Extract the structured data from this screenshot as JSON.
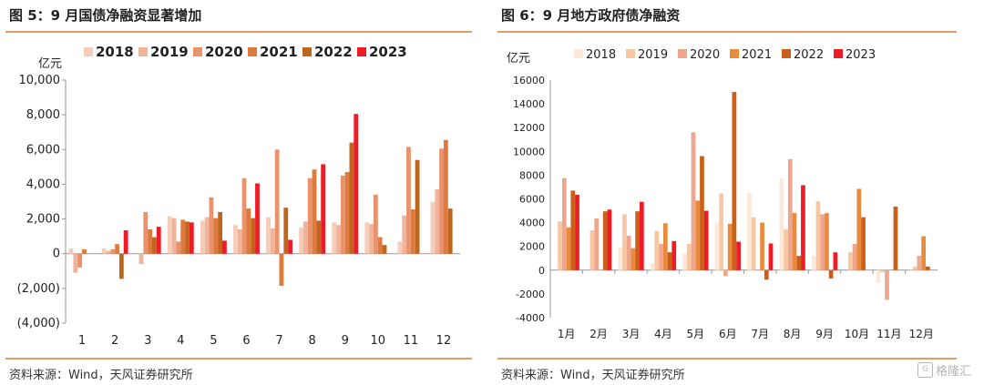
{
  "charts": [
    {
      "title": "图 5：9 月国债净融资显著增加",
      "source": "资料来源：Wind，天风证券研究所",
      "chart_data": {
        "type": "bar",
        "ylabel": "亿元",
        "categories": [
          "1",
          "2",
          "3",
          "4",
          "5",
          "6",
          "7",
          "8",
          "9",
          "10",
          "11",
          "12"
        ],
        "ylim": [
          -4000,
          10000
        ],
        "yticks": [
          -4000,
          -2000,
          0,
          2000,
          4000,
          6000,
          8000,
          10000
        ],
        "ytick_labels": [
          "(4,000)",
          "(2,000)",
          "0",
          "2,000",
          "4,000",
          "6,000",
          "8,000",
          "10,000"
        ],
        "legend_position": "top",
        "grid": false,
        "series": [
          {
            "name": "2018",
            "color": "#f6cdb8",
            "values": [
              300,
              300,
              0,
              2150,
              1900,
              1650,
              2100,
              1500,
              1800,
              1800,
              700,
              3000
            ]
          },
          {
            "name": "2019",
            "color": "#f0b49a",
            "values": [
              -1100,
              150,
              -600,
              2050,
              2100,
              1400,
              1450,
              1850,
              1650,
              1700,
              2200,
              3700
            ]
          },
          {
            "name": "2020",
            "color": "#e9926b",
            "values": [
              -800,
              250,
              2400,
              700,
              3250,
              4350,
              6000,
              4350,
              4500,
              3400,
              6150,
              6050
            ]
          },
          {
            "name": "2021",
            "color": "#dd7a3c",
            "values": [
              250,
              550,
              1400,
              1950,
              2050,
              2600,
              -1850,
              4850,
              4700,
              950,
              2550,
              6550
            ]
          },
          {
            "name": "2022",
            "color": "#bf661e",
            "values": [
              0,
              -1450,
              950,
              1850,
              2400,
              2050,
              2650,
              1900,
              6400,
              500,
              5400,
              2600
            ]
          },
          {
            "name": "2023",
            "color": "#ee1c25",
            "values": [
              0,
              1350,
              1550,
              1800,
              750,
              4050,
              800,
              5150,
              8050,
              null,
              null,
              null
            ]
          }
        ]
      }
    },
    {
      "title": "图 6：9 月地方政府债净融资",
      "source": "资料来源：Wind，天风证券研究所",
      "chart_data": {
        "type": "bar",
        "ylabel": "亿元",
        "categories": [
          "1月",
          "2月",
          "3月",
          "4月",
          "5月",
          "6月",
          "7月",
          "8月",
          "9月",
          "10月",
          "11月",
          "12月"
        ],
        "ylim": [
          -4000,
          16000
        ],
        "yticks": [
          -4000,
          -2000,
          0,
          2000,
          4000,
          6000,
          8000,
          10000,
          12000,
          14000,
          16000
        ],
        "ytick_labels": [
          "-4000",
          "-2000",
          "0",
          "2000",
          "4000",
          "6000",
          "8000",
          "10000",
          "12000",
          "14000",
          "16000"
        ],
        "legend_position": "top",
        "grid": false,
        "series": [
          {
            "name": "2018",
            "color": "#fde9d9",
            "values": [
              0,
              0,
              1900,
              550,
              1400,
              4000,
              6500,
              7700,
              1200,
              0,
              -1100,
              -100
            ]
          },
          {
            "name": "2019",
            "color": "#f7c7a4",
            "values": [
              4100,
              3350,
              4700,
              3300,
              2200,
              6450,
              4450,
              3450,
              5800,
              1500,
              -200,
              300
            ]
          },
          {
            "name": "2020",
            "color": "#eea68c",
            "values": [
              7750,
              4350,
              2900,
              2200,
              11600,
              -500,
              0,
              9350,
              4700,
              2200,
              -2500,
              1200
            ]
          },
          {
            "name": "2021",
            "color": "#ea8a3c",
            "values": [
              3600,
              0,
              1850,
              3950,
              5850,
              3900,
              4000,
              4800,
              4800,
              6850,
              0,
              2850
            ]
          },
          {
            "name": "2022",
            "color": "#c95f19",
            "values": [
              6700,
              4950,
              4950,
              1500,
              9600,
              15000,
              -800,
              1200,
              -700,
              4450,
              5350,
              300
            ]
          },
          {
            "name": "2023",
            "color": "#ee1c25",
            "values": [
              6350,
              5100,
              5750,
              2450,
              5000,
              2400,
              2250,
              7150,
              1500,
              null,
              null,
              null
            ]
          }
        ]
      }
    }
  ],
  "watermark": {
    "text": "格隆汇",
    "icon": "glh-logo-icon"
  }
}
